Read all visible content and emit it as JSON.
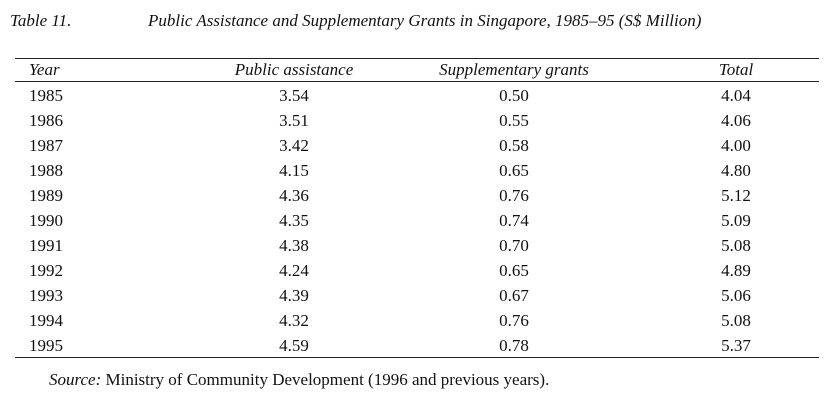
{
  "caption": {
    "label": "Table 11.",
    "title": "Public Assistance and Supplementary Grants in Singapore, 1985–95 (S$ Million)"
  },
  "table": {
    "headers": [
      "Year",
      "Public assistance",
      "Supplementary grants",
      "Total"
    ],
    "rows": [
      [
        "1985",
        "3.54",
        "0.50",
        "4.04"
      ],
      [
        "1986",
        "3.51",
        "0.55",
        "4.06"
      ],
      [
        "1987",
        "3.42",
        "0.58",
        "4.00"
      ],
      [
        "1988",
        "4.15",
        "0.65",
        "4.80"
      ],
      [
        "1989",
        "4.36",
        "0.76",
        "5.12"
      ],
      [
        "1990",
        "4.35",
        "0.74",
        "5.09"
      ],
      [
        "1991",
        "4.38",
        "0.70",
        "5.08"
      ],
      [
        "1992",
        "4.24",
        "0.65",
        "4.89"
      ],
      [
        "1993",
        "4.39",
        "0.67",
        "5.06"
      ],
      [
        "1994",
        "4.32",
        "0.76",
        "5.08"
      ],
      [
        "1995",
        "4.59",
        "0.78",
        "5.37"
      ]
    ]
  },
  "source": {
    "label": "Source:",
    "text": "Ministry of Community Development (1996 and previous years)."
  }
}
